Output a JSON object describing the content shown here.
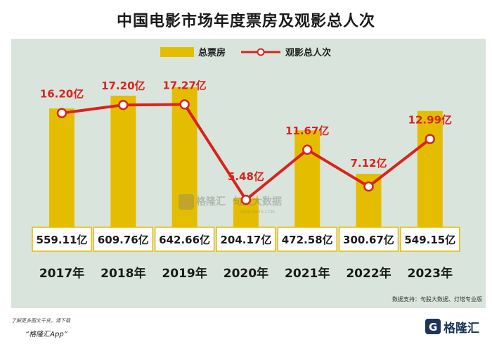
{
  "title": "中国电影市场年度票房及观影总人次",
  "chart_data": {
    "type": "bar",
    "categories": [
      "2017年",
      "2018年",
      "2019年",
      "2020年",
      "2021年",
      "2022年",
      "2023年"
    ],
    "series": [
      {
        "name": "总票房",
        "type": "bar",
        "values": [
          559.11,
          609.76,
          642.66,
          204.17,
          472.58,
          300.67,
          549.15
        ],
        "labels": [
          "559.11亿",
          "609.76亿",
          "642.66亿",
          "204.17亿",
          "472.58亿",
          "300.67亿",
          "549.15亿"
        ],
        "color": "#e5bd00"
      },
      {
        "name": "观影总人次",
        "type": "line",
        "values": [
          16.2,
          17.2,
          17.27,
          5.48,
          11.67,
          7.12,
          12.99
        ],
        "labels": [
          "16.20亿",
          "17.20亿",
          "17.27亿",
          "5.48亿",
          "11.67亿",
          "7.12亿",
          "12.99亿"
        ],
        "color": "#d9231d"
      }
    ],
    "ylim_bar": [
      0,
      700
    ],
    "ylim_line": [
      0,
      20
    ],
    "legend_position": "top-center"
  },
  "watermark": {
    "brand": "格隆汇",
    "brand2": "句股大数据",
    "site": "GOGUDATA.COM"
  },
  "source_note": "数据支持：句股大数据、灯塔专业版",
  "footer": {
    "hint": "了解更多图文干货，请下载",
    "app": "“格隆汇App”",
    "brand": "格隆汇"
  },
  "colors": {
    "panel": "#d9e5dc",
    "bar": "#e5bd00",
    "line": "#d9231d",
    "label_box_border": "#e5bd00"
  }
}
